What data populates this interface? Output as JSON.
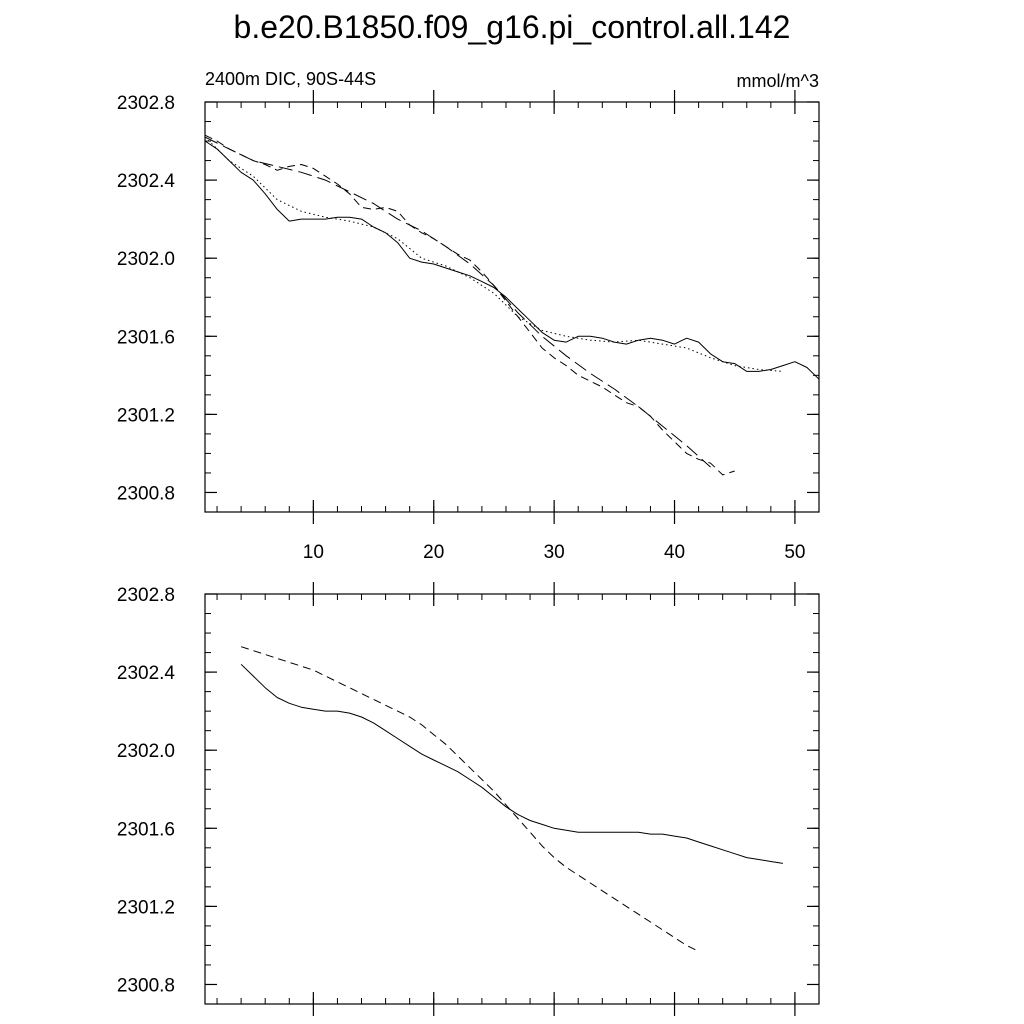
{
  "figure": {
    "title": "b.e20.B1850.f09_g16.pi_control.all.142"
  },
  "chart_data": [
    {
      "type": "line",
      "title": "",
      "left_label": "2400m DIC, 90S-44S",
      "right_label": "mmol/m^3",
      "xlabel": "",
      "ylabel": "",
      "xlim": [
        1,
        52
      ],
      "ylim": [
        2300.7,
        2302.8
      ],
      "yticks": [
        2300.8,
        2301.2,
        2301.6,
        2302.0,
        2302.4,
        2302.8
      ],
      "ytick_labels": [
        "2300.8",
        "2301.2",
        "2301.6",
        "2302.0",
        "2302.4",
        "2302.8"
      ],
      "xticks": [
        10,
        20,
        30,
        40,
        50
      ],
      "xtick_labels": [
        "10",
        "20",
        "30",
        "40",
        "50"
      ],
      "grid": false,
      "series": [
        {
          "style": "solid",
          "x": [
            1,
            2,
            3,
            4,
            5,
            6,
            7,
            8,
            9,
            10,
            11,
            12,
            13,
            14,
            15,
            16,
            17,
            18,
            19,
            20,
            21,
            22,
            23,
            24,
            25,
            26,
            27,
            28,
            29,
            30,
            31,
            32,
            33,
            34,
            35,
            36,
            37,
            38,
            39,
            40,
            41,
            42,
            43,
            44,
            45,
            46,
            47,
            48,
            49,
            50,
            51,
            52
          ],
          "y": [
            2302.6,
            2302.56,
            2302.5,
            2302.44,
            2302.4,
            2302.33,
            2302.25,
            2302.19,
            2302.2,
            2302.2,
            2302.2,
            2302.21,
            2302.21,
            2302.2,
            2302.16,
            2302.13,
            2302.08,
            2302.0,
            2301.98,
            2301.97,
            2301.95,
            2301.93,
            2301.91,
            2301.88,
            2301.85,
            2301.8,
            2301.74,
            2301.68,
            2301.62,
            2301.58,
            2301.57,
            2301.6,
            2301.6,
            2301.59,
            2301.57,
            2301.56,
            2301.58,
            2301.59,
            2301.58,
            2301.56,
            2301.59,
            2301.57,
            2301.51,
            2301.47,
            2301.46,
            2301.42,
            2301.42,
            2301.43,
            2301.45,
            2301.47,
            2301.44,
            2301.38
          ]
        },
        {
          "style": "dotted",
          "x": [
            1,
            3,
            5,
            7,
            9,
            11,
            13,
            15,
            17,
            19,
            21,
            23,
            25,
            27,
            29,
            31,
            33,
            35,
            37,
            39,
            41,
            43,
            45,
            47,
            49
          ],
          "y": [
            2302.62,
            2302.5,
            2302.42,
            2302.3,
            2302.24,
            2302.21,
            2302.19,
            2302.16,
            2302.1,
            2302.0,
            2301.96,
            2301.9,
            2301.82,
            2301.7,
            2301.63,
            2301.6,
            2301.58,
            2301.57,
            2301.58,
            2301.56,
            2301.54,
            2301.49,
            2301.45,
            2301.43,
            2301.42
          ]
        },
        {
          "style": "dashed",
          "x": [
            1,
            2,
            3,
            4,
            5,
            6,
            7,
            8,
            9,
            10,
            11,
            12,
            13,
            14,
            15,
            16,
            17,
            18,
            19,
            20,
            21,
            22,
            23,
            24,
            25,
            26,
            27,
            28,
            29,
            30,
            31,
            32,
            33,
            34,
            35,
            36,
            37,
            38,
            39,
            40,
            41,
            42,
            43,
            44,
            45
          ],
          "y": [
            2302.63,
            2302.6,
            2302.56,
            2302.53,
            2302.5,
            2302.48,
            2302.45,
            2302.47,
            2302.48,
            2302.46,
            2302.42,
            2302.38,
            2302.33,
            2302.26,
            2302.25,
            2302.26,
            2302.24,
            2302.17,
            2302.13,
            2302.1,
            2302.06,
            2302.02,
            2301.99,
            2301.93,
            2301.86,
            2301.78,
            2301.7,
            2301.62,
            2301.54,
            2301.49,
            2301.45,
            2301.4,
            2301.37,
            2301.34,
            2301.3,
            2301.26,
            2301.24,
            2301.19,
            2301.12,
            2301.06,
            2301.0,
            2300.97,
            2300.95,
            2300.89,
            2300.91
          ]
        },
        {
          "style": "longdash",
          "x": [
            1,
            3,
            5,
            7,
            9,
            11,
            13,
            15,
            17,
            19,
            21,
            23,
            25,
            27,
            29,
            31,
            33,
            35,
            37,
            39,
            41,
            43
          ],
          "y": [
            2302.62,
            2302.56,
            2302.5,
            2302.47,
            2302.44,
            2302.4,
            2302.34,
            2302.28,
            2302.2,
            2302.14,
            2302.06,
            2301.97,
            2301.86,
            2301.72,
            2301.6,
            2301.5,
            2301.41,
            2301.33,
            2301.24,
            2301.14,
            2301.04,
            2300.93
          ]
        }
      ]
    },
    {
      "type": "line",
      "title": "",
      "xlabel": "",
      "ylabel": "",
      "xlim": [
        1,
        52
      ],
      "ylim": [
        2300.7,
        2302.8
      ],
      "yticks": [
        2300.8,
        2301.2,
        2301.6,
        2302.0,
        2302.4,
        2302.8
      ],
      "ytick_labels": [
        "2300.8",
        "2301.2",
        "2301.6",
        "2302.0",
        "2302.4",
        "2302.8"
      ],
      "xticks": [
        10,
        20,
        30,
        40,
        50
      ],
      "grid": false,
      "series": [
        {
          "style": "solid",
          "x": [
            4,
            5,
            6,
            7,
            8,
            9,
            10,
            11,
            12,
            13,
            14,
            15,
            16,
            17,
            18,
            19,
            20,
            21,
            22,
            23,
            24,
            25,
            26,
            27,
            28,
            29,
            30,
            31,
            32,
            33,
            34,
            35,
            36,
            37,
            38,
            39,
            40,
            41,
            42,
            43,
            44,
            45,
            46,
            47,
            48,
            49
          ],
          "y": [
            2302.44,
            2302.38,
            2302.32,
            2302.27,
            2302.24,
            2302.22,
            2302.21,
            2302.2,
            2302.2,
            2302.19,
            2302.17,
            2302.14,
            2302.1,
            2302.06,
            2302.02,
            2301.98,
            2301.95,
            2301.92,
            2301.89,
            2301.85,
            2301.81,
            2301.76,
            2301.71,
            2301.67,
            2301.64,
            2301.62,
            2301.6,
            2301.59,
            2301.58,
            2301.58,
            2301.58,
            2301.58,
            2301.58,
            2301.58,
            2301.57,
            2301.57,
            2301.56,
            2301.55,
            2301.53,
            2301.51,
            2301.49,
            2301.47,
            2301.45,
            2301.44,
            2301.43,
            2301.42
          ]
        },
        {
          "style": "dashed",
          "x": [
            4,
            5,
            6,
            7,
            8,
            9,
            10,
            11,
            12,
            13,
            14,
            15,
            16,
            17,
            18,
            19,
            20,
            21,
            22,
            23,
            24,
            25,
            26,
            27,
            28,
            29,
            30,
            31,
            32,
            33,
            34,
            35,
            36,
            37,
            38,
            39,
            40,
            41,
            42
          ],
          "y": [
            2302.53,
            2302.51,
            2302.49,
            2302.47,
            2302.45,
            2302.43,
            2302.41,
            2302.38,
            2302.35,
            2302.32,
            2302.29,
            2302.26,
            2302.23,
            2302.2,
            2302.17,
            2302.13,
            2302.08,
            2302.03,
            2301.97,
            2301.91,
            2301.85,
            2301.79,
            2301.72,
            2301.65,
            2301.58,
            2301.51,
            2301.45,
            2301.4,
            2301.36,
            2301.32,
            2301.28,
            2301.24,
            2301.2,
            2301.16,
            2301.12,
            2301.08,
            2301.04,
            2301.0,
            2300.97
          ]
        }
      ]
    }
  ]
}
